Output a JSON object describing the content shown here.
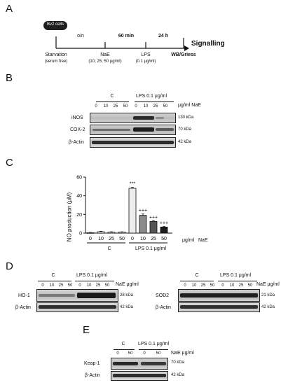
{
  "panels": {
    "a": "A",
    "b": "B",
    "c": "C",
    "d": "D",
    "e": "E"
  },
  "timeline": {
    "cell_badge": "Bv2 cells",
    "o_n": "o/n",
    "min60": "60 min",
    "h24": "24 h",
    "starvation": "Starvation",
    "serum_free": "(serum free)",
    "nae": "NaE",
    "nae_doses": "(10, 25, 50 μg/ml)",
    "lps": "LPS",
    "lps_dose": "(0.1 μg/ml)",
    "wb_griess": "WB/Griess",
    "signalling": "Signalling"
  },
  "doses": [
    "0",
    "10",
    "25",
    "50",
    "0",
    "10",
    "25",
    "50"
  ],
  "group_c": "C",
  "group_lps": "LPS 0.1 μg/ml",
  "unit_nae": "μg/ml NaE",
  "unit_nae2": "NaE μg/ml",
  "blot_b": {
    "rows": [
      {
        "label": "iNOS",
        "kda": "130 kDa"
      },
      {
        "label": "COX-2",
        "kda": "70 kDa"
      },
      {
        "label": "β-Actin",
        "kda": "42 kDa"
      }
    ]
  },
  "chart_data": {
    "type": "bar",
    "categories": [
      "0",
      "10",
      "25",
      "50",
      "0",
      "10",
      "25",
      "50"
    ],
    "values": [
      0.5,
      1.5,
      1.0,
      1.0,
      48,
      19,
      12.5,
      6.5
    ],
    "errors": [
      0.3,
      0.5,
      0.4,
      0.4,
      1.0,
      1.5,
      0.8,
      0.5
    ],
    "colors": [
      "#ffffff",
      "#ffffff",
      "#ffffff",
      "#ffffff",
      "#ececec",
      "#8a8a8a",
      "#555555",
      "#1e1e1e"
    ],
    "annotations": [
      "",
      "",
      "",
      "",
      "***",
      "+++",
      "+++",
      "+++"
    ],
    "ylabel": "NO production (μM)",
    "yticks": [
      "0",
      "20",
      "40",
      "60"
    ],
    "ylim": [
      0,
      60
    ],
    "xunit": "μg/ml",
    "xunit2": "NaE",
    "group_labels": [
      "C",
      "LPS 0.1 μg/ml"
    ]
  },
  "blot_d": {
    "left": {
      "label": "HO-1",
      "kda": "28 kDa",
      "actin": "β-Actin",
      "actin_kda": "42 kDa"
    },
    "right": {
      "label": "SOD2",
      "kda": "21 kDa",
      "actin": "β-Actin",
      "actin_kda": "42 kDa"
    }
  },
  "blot_e": {
    "doses": [
      "0",
      "50",
      "0",
      "50"
    ],
    "label": "Keap-1",
    "kda": "70 kDa",
    "actin": "β-Actin",
    "actin_kda": "42 kDa"
  }
}
